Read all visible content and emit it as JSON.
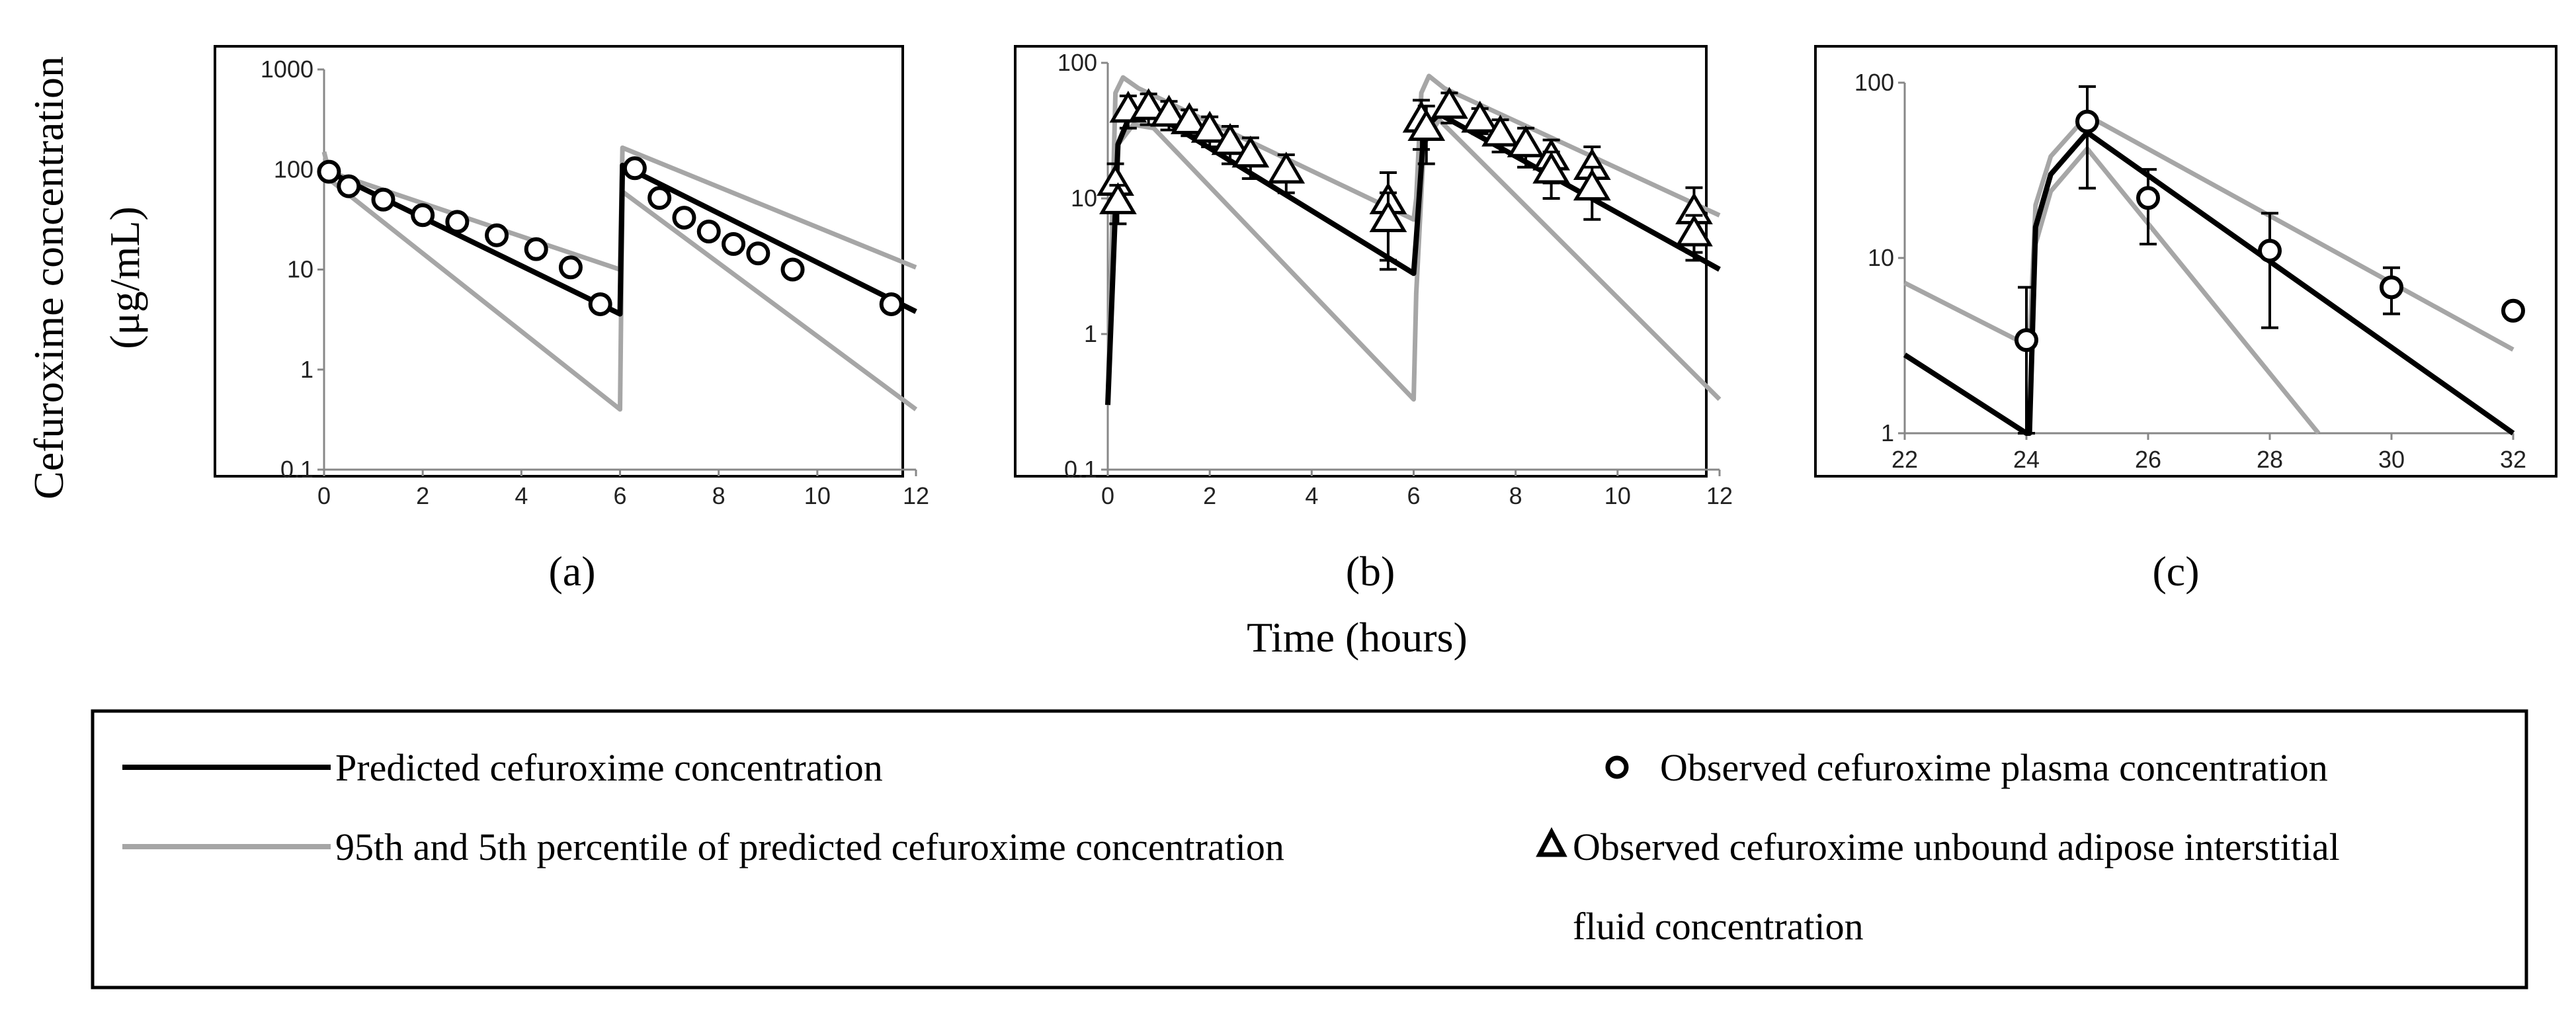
{
  "figure": {
    "y_axis_label_line1": "Cefuroxime concentration",
    "y_axis_label_line2": "(μg/mL)",
    "x_axis_label": "Time (hours)"
  },
  "legend": {
    "predicted": "Predicted cefuroxime concentration",
    "percentiles": "95th and 5th percentile of predicted cefuroxime concentration",
    "observed_plasma": "Observed cefuroxime plasma concentration",
    "observed_isf_line1": "Observed cefuroxime unbound adipose interstitial",
    "observed_isf_line2": "fluid concentration"
  },
  "colors": {
    "predicted": "#000000",
    "percentile": "#a6a6a6",
    "frame": "#000000"
  },
  "chart_data": [
    {
      "type": "line",
      "panel_label": "(a)",
      "yscale": "log",
      "xlim": [
        0,
        12
      ],
      "ylim": [
        0.1,
        1000
      ],
      "xticks": [
        0,
        2,
        4,
        6,
        8,
        10,
        12
      ],
      "yticks": [
        0.1,
        1,
        10,
        100,
        1000
      ],
      "ytick_labels": [
        "0.1",
        "1",
        "10",
        "100",
        "1000"
      ],
      "series": [
        {
          "name": "Predicted cefuroxime concentration",
          "role": "predicted",
          "x": [
            0,
            6,
            6.05,
            12
          ],
          "y": [
            100,
            3.6,
            110,
            3.8
          ]
        },
        {
          "name": "95th percentile",
          "role": "percentile",
          "x": [
            0,
            0.1,
            6,
            6.05,
            12
          ],
          "y": [
            150,
            95,
            10,
            165,
            10.5
          ]
        },
        {
          "name": "5th percentile",
          "role": "percentile",
          "x": [
            0,
            0.1,
            6,
            6.05,
            12
          ],
          "y": [
            90,
            80,
            0.4,
            60,
            0.4
          ]
        }
      ],
      "points": [
        {
          "marker": "circle",
          "x": 0.1,
          "y": 95,
          "err": 0
        },
        {
          "marker": "circle",
          "x": 0.5,
          "y": 68,
          "err": 0
        },
        {
          "marker": "circle",
          "x": 1.2,
          "y": 50,
          "err": 0
        },
        {
          "marker": "circle",
          "x": 2.0,
          "y": 35,
          "err": 0
        },
        {
          "marker": "circle",
          "x": 2.7,
          "y": 30,
          "err": 0
        },
        {
          "marker": "circle",
          "x": 3.5,
          "y": 22,
          "err": 0
        },
        {
          "marker": "circle",
          "x": 4.3,
          "y": 16,
          "err": 0
        },
        {
          "marker": "circle",
          "x": 5.0,
          "y": 10.5,
          "err": 0
        },
        {
          "marker": "circle",
          "x": 5.6,
          "y": 4.5,
          "err": 0
        },
        {
          "marker": "circle",
          "x": 6.3,
          "y": 103,
          "err": 0
        },
        {
          "marker": "circle",
          "x": 6.8,
          "y": 52,
          "err": 0
        },
        {
          "marker": "circle",
          "x": 7.3,
          "y": 33,
          "err": 0
        },
        {
          "marker": "circle",
          "x": 7.8,
          "y": 24,
          "err": 0
        },
        {
          "marker": "circle",
          "x": 8.3,
          "y": 18,
          "err": 0
        },
        {
          "marker": "circle",
          "x": 8.8,
          "y": 14.5,
          "err": 0
        },
        {
          "marker": "circle",
          "x": 9.5,
          "y": 10,
          "err": 0
        },
        {
          "marker": "circle",
          "x": 11.5,
          "y": 4.5,
          "err": 0
        }
      ]
    },
    {
      "type": "line",
      "panel_label": "(b)",
      "yscale": "log",
      "xlim": [
        0,
        12
      ],
      "ylim": [
        0.1,
        100
      ],
      "xticks": [
        0,
        2,
        4,
        6,
        8,
        10,
        12
      ],
      "yticks": [
        0.1,
        1,
        10,
        100
      ],
      "ytick_labels": [
        "0.1",
        "1",
        "10",
        "100"
      ],
      "series": [
        {
          "name": "Predicted cefuroxime concentration",
          "role": "predicted",
          "x": [
            0,
            0.2,
            0.4,
            0.7,
            1.0,
            6,
            6.05,
            6.2,
            6.5,
            12
          ],
          "y": [
            0.3,
            25,
            38,
            40,
            40,
            2.8,
            5,
            32,
            42,
            3.0
          ]
        },
        {
          "name": "95th percentile",
          "role": "percentile",
          "x": [
            0,
            0.15,
            0.3,
            0.6,
            1.0,
            6,
            6.05,
            6.15,
            6.3,
            6.6,
            12
          ],
          "y": [
            0.3,
            60,
            78,
            65,
            55,
            7,
            10,
            60,
            80,
            65,
            7.5
          ]
        },
        {
          "name": "5th percentile",
          "role": "percentile",
          "x": [
            0,
            0.2,
            0.5,
            0.9,
            6,
            6.05,
            6.2,
            6.5,
            12
          ],
          "y": [
            0.3,
            25,
            35,
            33,
            0.33,
            2,
            25,
            38,
            0.33
          ]
        }
      ],
      "points": [
        {
          "marker": "triangle",
          "x": 0.15,
          "y": 13,
          "err": 5
        },
        {
          "marker": "triangle",
          "x": 0.2,
          "y": 9.5,
          "err": 3
        },
        {
          "marker": "triangle",
          "x": 0.4,
          "y": 45,
          "err": 12
        },
        {
          "marker": "triangle",
          "x": 0.8,
          "y": 47,
          "err": 12
        },
        {
          "marker": "triangle",
          "x": 1.2,
          "y": 42,
          "err": 10
        },
        {
          "marker": "triangle",
          "x": 1.6,
          "y": 37,
          "err": 8
        },
        {
          "marker": "triangle",
          "x": 2.0,
          "y": 32,
          "err": 8
        },
        {
          "marker": "triangle",
          "x": 2.4,
          "y": 26,
          "err": 8
        },
        {
          "marker": "triangle",
          "x": 2.8,
          "y": 21,
          "err": 7
        },
        {
          "marker": "triangle",
          "x": 3.5,
          "y": 16,
          "err": 5
        },
        {
          "marker": "triangle",
          "x": 5.5,
          "y": 9.5,
          "err": 6
        },
        {
          "marker": "triangle",
          "x": 5.5,
          "y": 7,
          "err": 4
        },
        {
          "marker": "triangle",
          "x": 6.15,
          "y": 38,
          "err": 15
        },
        {
          "marker": "triangle",
          "x": 6.25,
          "y": 33,
          "err": 15
        },
        {
          "marker": "triangle",
          "x": 6.7,
          "y": 48,
          "err": 12
        },
        {
          "marker": "triangle",
          "x": 7.3,
          "y": 38,
          "err": 8
        },
        {
          "marker": "triangle",
          "x": 7.7,
          "y": 30,
          "err": 8
        },
        {
          "marker": "triangle",
          "x": 8.2,
          "y": 25,
          "err": 8
        },
        {
          "marker": "triangle",
          "x": 8.7,
          "y": 20,
          "err": 7
        },
        {
          "marker": "triangle",
          "x": 8.7,
          "y": 16,
          "err": 6
        },
        {
          "marker": "triangle",
          "x": 9.5,
          "y": 17,
          "err": 7
        },
        {
          "marker": "triangle",
          "x": 9.5,
          "y": 12,
          "err": 5
        },
        {
          "marker": "triangle",
          "x": 11.5,
          "y": 8,
          "err": 4
        },
        {
          "marker": "triangle",
          "x": 11.5,
          "y": 5.5,
          "err": 2
        }
      ]
    },
    {
      "type": "line",
      "panel_label": "(c)",
      "yscale": "log",
      "xlim": [
        22,
        32
      ],
      "ylim": [
        1,
        100
      ],
      "xticks": [
        22,
        24,
        26,
        28,
        30,
        32
      ],
      "yticks": [
        1,
        10,
        100
      ],
      "ytick_labels": [
        "1",
        "10",
        "100"
      ],
      "series": [
        {
          "name": "Predicted cefuroxime concentration",
          "role": "predicted",
          "x": [
            22,
            24,
            24.05,
            24.15,
            24.4,
            25,
            32
          ],
          "y": [
            2.8,
            1.0,
            1.0,
            15,
            30,
            52,
            1.0
          ]
        },
        {
          "name": "95th percentile",
          "role": "percentile",
          "x": [
            22,
            24,
            24.05,
            24.15,
            24.4,
            25,
            32
          ],
          "y": [
            7.2,
            3.2,
            3.2,
            20,
            38,
            65,
            3.0
          ]
        },
        {
          "name": "5th percentile",
          "role": "percentile",
          "x": [
            24.05,
            24.15,
            24.4,
            25,
            28.8
          ],
          "y": [
            1.0,
            12,
            24,
            42,
            1.0
          ]
        }
      ],
      "points": [
        {
          "marker": "circle",
          "x": 24,
          "y": 3.4,
          "err": 3.4
        },
        {
          "marker": "circle",
          "x": 25,
          "y": 60,
          "err": 35
        },
        {
          "marker": "circle",
          "x": 26,
          "y": 22,
          "err": 10
        },
        {
          "marker": "circle",
          "x": 28,
          "y": 11,
          "err": 7
        },
        {
          "marker": "circle",
          "x": 30,
          "y": 6.8,
          "err": 2
        },
        {
          "marker": "circle",
          "x": 32,
          "y": 5.0,
          "err": 0
        }
      ]
    }
  ]
}
